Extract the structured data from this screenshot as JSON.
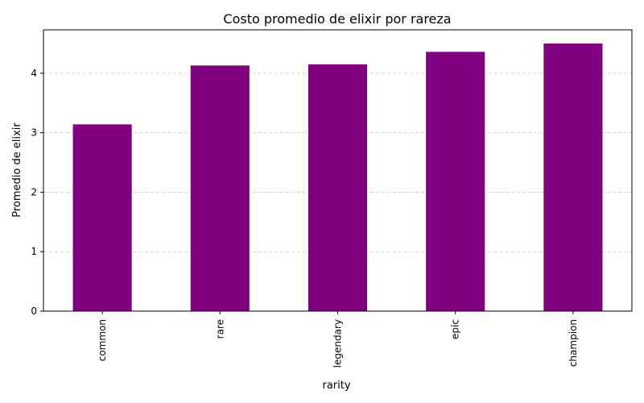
{
  "chart_data": {
    "type": "bar",
    "title": "Costo promedio de elixir por rareza",
    "xlabel": "rarity",
    "ylabel": "Promedio de elixir",
    "categories": [
      "common",
      "rare",
      "legendary",
      "epic",
      "champion"
    ],
    "values": [
      3.14,
      4.13,
      4.15,
      4.36,
      4.5
    ],
    "ylim": [
      0,
      4.73
    ],
    "yticks": [
      0,
      1,
      2,
      3,
      4
    ],
    "grid": "y-dashed",
    "bar_color": "#800080",
    "legend": "none"
  }
}
